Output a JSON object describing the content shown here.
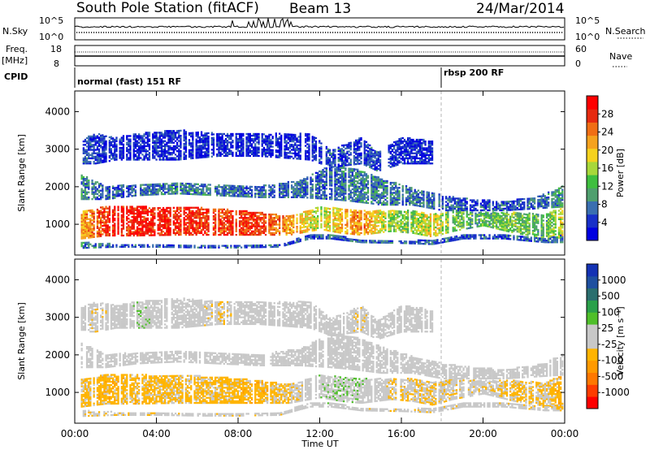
{
  "header": {
    "station": "South Pole Station (fitACF)",
    "beam": "Beam 13",
    "date": "24/Mar/2014"
  },
  "params": {
    "nsky_label": "N.Sky",
    "nsky_ticks": [
      "10^5",
      "10^0"
    ],
    "nsearch_label": "N.Search",
    "nsearch_ticks": [
      "10^5",
      "10^0"
    ],
    "freq_label_1": "Freq.",
    "freq_label_2": "[MHz]",
    "freq_ticks": [
      "18",
      "8"
    ],
    "nave_label": "Nave",
    "nave_ticks": [
      "60",
      "0"
    ],
    "cpid_label": "CPID",
    "cpid_segments": [
      {
        "label": "normal (fast) 151 RF"
      },
      {
        "label": "rbsp 200 RF"
      }
    ]
  },
  "chart_data": [
    {
      "type": "heatmap",
      "title": "",
      "xlabel": "Time UT",
      "ylabel": "Slant Range [km]",
      "xticks": [
        "00:00",
        "04:00",
        "08:00",
        "12:00",
        "16:00",
        "20:00",
        "00:00"
      ],
      "xlim_hours": [
        0,
        24
      ],
      "ylim": [
        180,
        4550
      ],
      "yticks": [
        1000,
        2000,
        3000,
        4000
      ],
      "colorbar": {
        "label": "Power [dB]",
        "ticks": [
          "28",
          "24",
          "20",
          "16",
          "12",
          "8",
          "4"
        ],
        "range": [
          0,
          30
        ],
        "colors": [
          "#0000e0",
          "#1830c8",
          "#3a6fb0",
          "#4f9f6e",
          "#3fbf3f",
          "#a8d83a",
          "#f5d21e",
          "#f5a21e",
          "#f06e14",
          "#e62a10",
          "#ff0000"
        ]
      },
      "echo_bands": [
        {
          "name": "main",
          "t": [
            0.3,
            1.5,
            3,
            5,
            7,
            9,
            10.5,
            12,
            13,
            14,
            15.5,
            16.5,
            17.5,
            18.5,
            20,
            21.5,
            23,
            23.9
          ],
          "r_lo": [
            600,
            680,
            680,
            700,
            700,
            700,
            700,
            850,
            750,
            700,
            800,
            750,
            650,
            800,
            950,
            750,
            620,
            620
          ],
          "r_hi": [
            1350,
            1450,
            1450,
            1450,
            1400,
            1300,
            1200,
            1450,
            1400,
            1350,
            1350,
            1350,
            1250,
            1350,
            1300,
            1300,
            1250,
            1450
          ],
          "level": [
            20,
            26,
            28,
            27,
            25,
            26,
            21,
            15,
            20,
            22,
            14,
            13,
            18,
            12,
            11,
            13,
            11,
            18
          ]
        },
        {
          "name": "lower",
          "t": [
            0.3,
            2,
            4,
            6,
            8,
            10,
            11.5,
            12.5,
            14,
            16,
            17.5,
            19,
            21,
            23,
            23.9
          ],
          "r_lo": [
            350,
            380,
            380,
            360,
            360,
            380,
            600,
            600,
            500,
            480,
            450,
            600,
            600,
            500,
            500
          ],
          "r_hi": [
            500,
            460,
            450,
            430,
            440,
            460,
            700,
            700,
            580,
            560,
            550,
            700,
            700,
            600,
            700
          ],
          "level": [
            8,
            6,
            5,
            5,
            5,
            6,
            5,
            6,
            6,
            6,
            6,
            5,
            6,
            6,
            8
          ]
        },
        {
          "name": "upper",
          "t": [
            0.3,
            1.5,
            3,
            5,
            7,
            9,
            11,
            12.5,
            13.5,
            15,
            16.5,
            18,
            19.5,
            21,
            22.5,
            23.9
          ],
          "r_lo": [
            1650,
            1650,
            1750,
            1800,
            1750,
            1700,
            1700,
            1650,
            1600,
            1500,
            1500,
            1350,
            1350,
            1350,
            1400,
            1450
          ],
          "r_hi": [
            2300,
            2000,
            2050,
            2100,
            2050,
            2000,
            2150,
            2550,
            2500,
            2200,
            1950,
            1750,
            1650,
            1600,
            1700,
            2000
          ],
          "level": [
            8,
            6,
            6,
            8,
            7,
            6,
            7,
            6,
            8,
            8,
            7,
            6,
            5,
            5,
            6,
            9
          ]
        },
        {
          "name": "high",
          "t": [
            0.3,
            1,
            2,
            3,
            5,
            7,
            9,
            11.5,
            12.5,
            14,
            14.8,
            16,
            17.5
          ],
          "r_lo": [
            2600,
            2600,
            2700,
            2700,
            2700,
            2800,
            2800,
            2700,
            2500,
            2600,
            2400,
            2600,
            2600
          ],
          "r_hi": [
            3250,
            3400,
            3300,
            3400,
            3500,
            3400,
            3400,
            3400,
            2950,
            3300,
            2900,
            3300,
            3200
          ],
          "level": [
            5,
            4,
            3,
            3,
            3,
            3,
            3,
            3,
            5,
            4,
            5,
            3,
            3
          ]
        }
      ]
    },
    {
      "type": "heatmap",
      "title": "",
      "xlabel": "Time UT",
      "ylabel": "Slant Range [km]",
      "xticks": [
        "00:00",
        "04:00",
        "08:00",
        "12:00",
        "16:00",
        "20:00",
        "00:00"
      ],
      "xlim_hours": [
        0,
        24
      ],
      "ylim": [
        180,
        4550
      ],
      "yticks": [
        1000,
        2000,
        3000,
        4000
      ],
      "colorbar": {
        "label": "Velocity [m s⁻¹]",
        "ticks": [
          "1000",
          "500",
          "100",
          "25",
          "-25",
          "-100",
          "-500",
          "-1000"
        ],
        "range": [
          -1200,
          1200
        ],
        "colors": [
          "#ff0000",
          "#ff3c00",
          "#ff7800",
          "#ff9a00",
          "#ffb400",
          "#c8c8c8",
          "#c8c8c8",
          "#4fbf2a",
          "#2aa04a",
          "#2a6e6e",
          "#1e50a0",
          "#1432b4"
        ]
      },
      "echo_bands": [
        {
          "name": "main",
          "t": [
            0.3,
            1.5,
            3,
            5,
            7,
            9,
            10.5,
            12,
            13,
            14,
            15.5,
            16.5,
            17.5,
            18.5,
            20,
            21.5,
            23,
            23.9
          ],
          "r_lo": [
            600,
            680,
            680,
            700,
            700,
            700,
            700,
            850,
            750,
            700,
            800,
            750,
            650,
            800,
            950,
            750,
            620,
            620
          ],
          "r_hi": [
            1350,
            1450,
            1450,
            1450,
            1400,
            1300,
            1200,
            1450,
            1400,
            1350,
            1350,
            1350,
            1250,
            1350,
            1300,
            1300,
            1250,
            1450
          ],
          "level": [
            -250,
            -300,
            -280,
            -260,
            -260,
            -300,
            -200,
            100,
            150,
            120,
            -150,
            -150,
            -200,
            -120,
            -80,
            -250,
            -200,
            -350
          ]
        },
        {
          "name": "lower",
          "t": [
            0.3,
            2,
            4,
            6,
            8,
            10,
            11.5,
            12.5,
            14,
            16,
            17.5,
            19,
            21,
            23,
            23.9
          ],
          "r_lo": [
            350,
            380,
            380,
            360,
            360,
            380,
            600,
            600,
            500,
            480,
            450,
            600,
            600,
            500,
            500
          ],
          "r_hi": [
            500,
            460,
            450,
            430,
            440,
            460,
            700,
            700,
            580,
            560,
            550,
            700,
            700,
            600,
            700
          ],
          "level": [
            -150,
            -120,
            -120,
            -100,
            -120,
            -100,
            50,
            80,
            -80,
            -100,
            -120,
            -80,
            -80,
            -120,
            -200
          ]
        },
        {
          "name": "upper",
          "t": [
            0.3,
            1.5,
            3,
            5,
            7,
            9,
            11,
            12.5,
            13.5,
            15,
            16.5,
            18,
            19.5,
            21,
            22.5,
            23.9
          ],
          "r_lo": [
            1650,
            1650,
            1750,
            1800,
            1750,
            1700,
            1700,
            1650,
            1600,
            1500,
            1500,
            1350,
            1350,
            1350,
            1400,
            1450
          ],
          "r_hi": [
            2300,
            2000,
            2050,
            2100,
            2050,
            2000,
            2150,
            2550,
            2500,
            2200,
            1950,
            1750,
            1650,
            1600,
            1700,
            2000
          ],
          "level": [
            0,
            5,
            0,
            -5,
            0,
            5,
            10,
            0,
            5,
            0,
            0,
            0,
            5,
            0,
            0,
            10
          ]
        },
        {
          "name": "high",
          "t": [
            0.3,
            1,
            2,
            3,
            5,
            7,
            9,
            11.5,
            12.5,
            14,
            14.8,
            16,
            17.5
          ],
          "r_lo": [
            2600,
            2600,
            2700,
            2700,
            2700,
            2800,
            2800,
            2700,
            2500,
            2600,
            2400,
            2600,
            2600
          ],
          "r_hi": [
            3250,
            3400,
            3300,
            3400,
            3500,
            3400,
            3400,
            3400,
            2950,
            3300,
            2900,
            3300,
            3200
          ],
          "level": [
            0,
            -150,
            0,
            120,
            0,
            -150,
            0,
            0,
            0,
            -120,
            0,
            0,
            0
          ]
        }
      ]
    }
  ]
}
